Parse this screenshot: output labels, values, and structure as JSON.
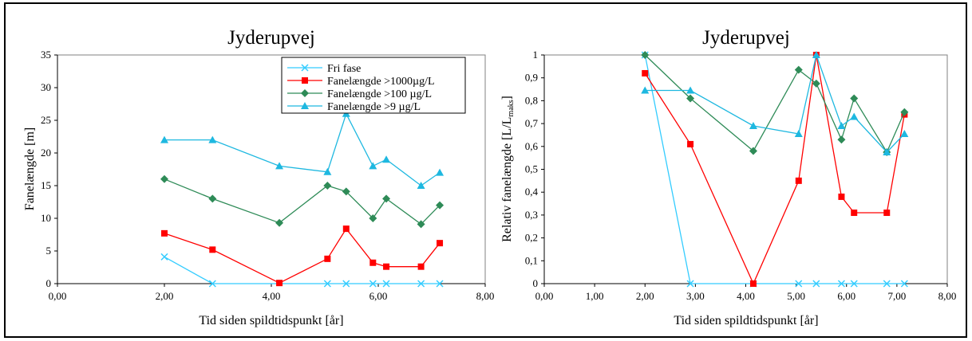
{
  "chart_data": [
    {
      "type": "line",
      "title": "Jyderupvej",
      "xlabel": "Tid siden spildtidspunkt [år]",
      "ylabel": "Fanelængde [m]",
      "xlim": [
        0,
        8
      ],
      "ylim": [
        0,
        35
      ],
      "xticks": [
        "0,00",
        "2,00",
        "4,00",
        "6,00",
        "8,00"
      ],
      "yticks": [
        "0",
        "5",
        "10",
        "15",
        "20",
        "25",
        "30",
        "35"
      ],
      "legend": "top-right",
      "series": [
        {
          "name": "Fri fase",
          "color": "#33ccff",
          "marker": "x",
          "x": [
            2.0,
            2.9,
            5.05,
            5.4,
            5.9,
            6.15,
            6.8,
            7.15
          ],
          "y": [
            4.1,
            0,
            0,
            0,
            0,
            0,
            0,
            0
          ]
        },
        {
          "name": "Fanelængde >1000µg/L",
          "color": "#ff0000",
          "marker": "square",
          "x": [
            2.0,
            2.9,
            4.15,
            5.05,
            5.4,
            5.9,
            6.15,
            6.8,
            7.15
          ],
          "y": [
            7.7,
            5.2,
            0.1,
            3.8,
            8.4,
            3.2,
            2.6,
            2.6,
            6.2
          ]
        },
        {
          "name": "Fanelængde >100 µg/L",
          "color": "#2e8b57",
          "marker": "diamond",
          "x": [
            2.0,
            2.9,
            4.15,
            5.05,
            5.4,
            5.9,
            6.15,
            6.8,
            7.15
          ],
          "y": [
            16,
            13,
            9.3,
            15,
            14.1,
            10,
            13,
            9.1,
            12
          ]
        },
        {
          "name": "Fanelængde >9 µg/L",
          "color": "#1eb8e0",
          "marker": "triangle",
          "x": [
            2.0,
            2.9,
            4.15,
            5.05,
            5.4,
            5.9,
            6.15,
            6.8,
            7.15
          ],
          "y": [
            22,
            22,
            18,
            17.1,
            26,
            18,
            19,
            15,
            17
          ]
        }
      ]
    },
    {
      "type": "line",
      "title": "Jyderupvej",
      "xlabel": "Tid siden spildtidspunkt [år]",
      "ylabel_main": "Relativ fanelængde [L/L",
      "ylabel_sub": "maks",
      "ylabel_end": "]",
      "xlim": [
        0,
        8
      ],
      "ylim": [
        0,
        1
      ],
      "xticks": [
        "0,00",
        "1,00",
        "2,00",
        "3,00",
        "4,00",
        "5,00",
        "6,00",
        "7,00",
        "8,00"
      ],
      "yticks": [
        "0",
        "0,1",
        "0,2",
        "0,3",
        "0,4",
        "0,5",
        "0,6",
        "0,7",
        "0,8",
        "0,9",
        "1"
      ],
      "series": [
        {
          "name": "Fri fase",
          "color": "#33ccff",
          "marker": "x",
          "x": [
            2.0,
            2.9,
            4.15,
            5.05,
            5.4,
            5.9,
            6.15,
            6.8,
            7.15
          ],
          "y": [
            1,
            0,
            0,
            0,
            0,
            0,
            0,
            0,
            0
          ]
        },
        {
          "name": "Fanelængde >1000µg/L",
          "color": "#ff0000",
          "marker": "square",
          "x": [
            2.0,
            2.9,
            4.15,
            5.05,
            5.4,
            5.9,
            6.15,
            6.8,
            7.15
          ],
          "y": [
            0.92,
            0.61,
            0.0,
            0.45,
            1.0,
            0.38,
            0.31,
            0.31,
            0.74
          ]
        },
        {
          "name": "Fanelængde >100 µg/L",
          "color": "#2e8b57",
          "marker": "diamond",
          "x": [
            2.0,
            2.9,
            4.15,
            5.05,
            5.4,
            5.9,
            6.15,
            6.8,
            7.15
          ],
          "y": [
            1.0,
            0.81,
            0.58,
            0.935,
            0.875,
            0.63,
            0.81,
            0.575,
            0.75
          ]
        },
        {
          "name": "Fanelængde >9 µg/L",
          "color": "#1eb8e0",
          "marker": "triangle",
          "x": [
            2.0,
            2.9,
            4.15,
            5.05,
            5.4,
            5.9,
            6.15,
            6.8,
            7.15
          ],
          "y": [
            0.845,
            0.845,
            0.69,
            0.655,
            1.0,
            0.69,
            0.73,
            0.575,
            0.655
          ]
        }
      ]
    }
  ]
}
